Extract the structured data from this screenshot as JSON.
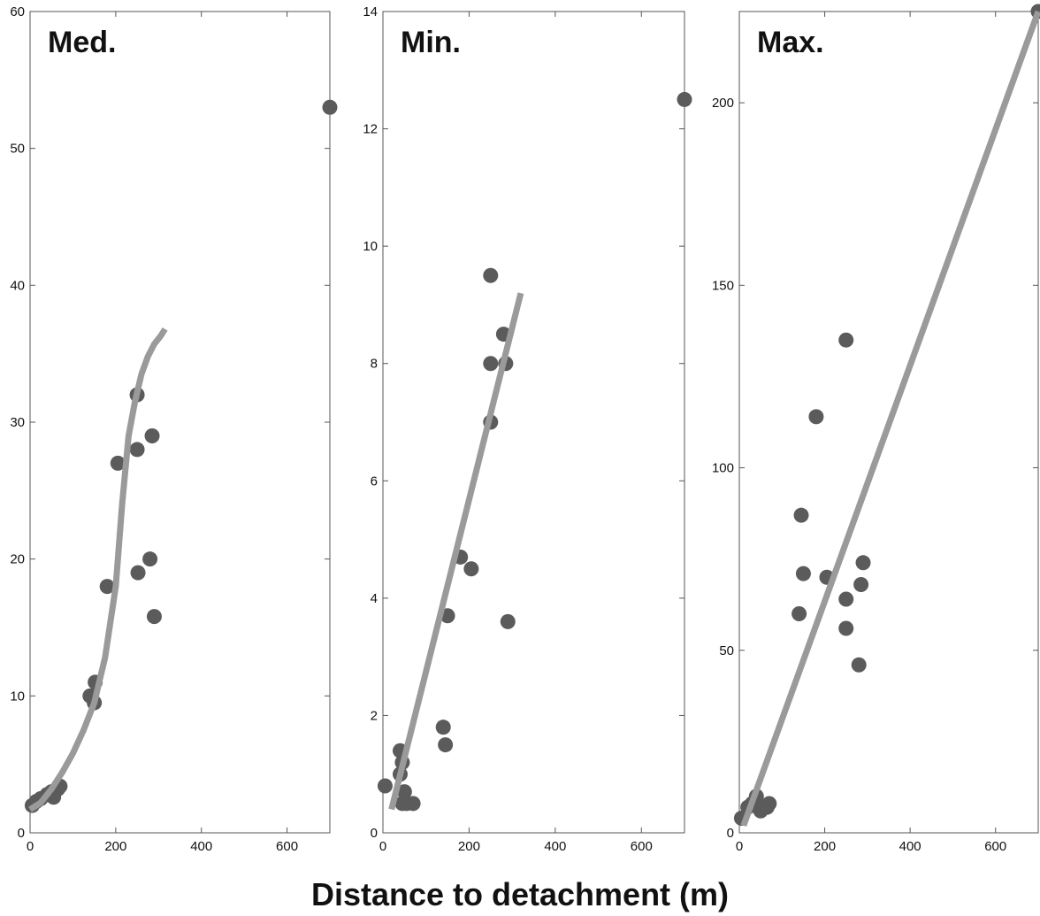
{
  "figure": {
    "xlabel": "Distance to detachment (m)"
  },
  "chart_data": [
    {
      "type": "scatter",
      "title": "Med.",
      "xlim": [
        0,
        700
      ],
      "ylim": [
        0,
        60
      ],
      "xticks": [
        0,
        200,
        400,
        600
      ],
      "yticks": [
        0,
        10,
        20,
        30,
        40,
        50,
        60
      ],
      "grid": false,
      "points": {
        "x": [
          5,
          15,
          25,
          40,
          50,
          55,
          65,
          70,
          140,
          150,
          152,
          180,
          205,
          250,
          250,
          252,
          280,
          285,
          290,
          700
        ],
        "y": [
          2.0,
          2.3,
          2.5,
          2.8,
          3.0,
          2.6,
          3.2,
          3.4,
          10.0,
          9.5,
          11.0,
          18.0,
          27.0,
          32.0,
          28.0,
          19.0,
          20.0,
          29.0,
          15.8,
          53.0
        ]
      },
      "fit": {
        "x": [
          0,
          25,
          50,
          75,
          100,
          125,
          150,
          175,
          200,
          215,
          230,
          245,
          260,
          275,
          290,
          305,
          315
        ],
        "y": [
          1.7,
          2.2,
          3.2,
          4.4,
          5.8,
          7.5,
          9.5,
          12.8,
          18.0,
          24.0,
          29.0,
          31.5,
          33.5,
          34.8,
          35.7,
          36.3,
          36.8
        ]
      },
      "point_color": "#5b5b5b",
      "fit_color": "#9a9a9a"
    },
    {
      "type": "scatter",
      "title": "Min.",
      "xlim": [
        0,
        700
      ],
      "ylim": [
        0,
        14
      ],
      "xticks": [
        0,
        200,
        400,
        600
      ],
      "yticks": [
        0,
        2,
        4,
        6,
        8,
        10,
        12,
        14
      ],
      "grid": false,
      "points": {
        "x": [
          5,
          40,
          40,
          45,
          50,
          55,
          45,
          70,
          140,
          145,
          150,
          180,
          205,
          250,
          250,
          250,
          280,
          285,
          290,
          700
        ],
        "y": [
          0.8,
          1.4,
          1.0,
          1.2,
          0.7,
          0.5,
          0.5,
          0.5,
          1.8,
          1.5,
          3.7,
          4.7,
          4.5,
          9.5,
          8.0,
          7.0,
          8.5,
          8.0,
          3.6,
          12.5
        ]
      },
      "fit": {
        "x": [
          20,
          320
        ],
        "y": [
          0.4,
          9.2
        ]
      },
      "point_color": "#5b5b5b",
      "fit_color": "#9a9a9a"
    },
    {
      "type": "scatter",
      "title": "Max.",
      "xlim": [
        0,
        700
      ],
      "ylim": [
        0,
        225
      ],
      "xticks": [
        0,
        200,
        400,
        600
      ],
      "yticks": [
        0,
        50,
        100,
        150,
        200
      ],
      "grid": false,
      "points": {
        "x": [
          5,
          20,
          30,
          40,
          50,
          55,
          65,
          70,
          140,
          145,
          150,
          180,
          205,
          250,
          250,
          250,
          280,
          285,
          290,
          700
        ],
        "y": [
          4,
          7,
          8,
          10,
          6,
          7,
          7,
          8,
          60,
          87,
          71,
          114,
          70,
          135,
          64,
          56,
          46,
          68,
          74,
          225
        ]
      },
      "fit": {
        "x": [
          10,
          700
        ],
        "y": [
          2,
          225
        ]
      },
      "point_color": "#5b5b5b",
      "fit_color": "#9a9a9a"
    }
  ]
}
